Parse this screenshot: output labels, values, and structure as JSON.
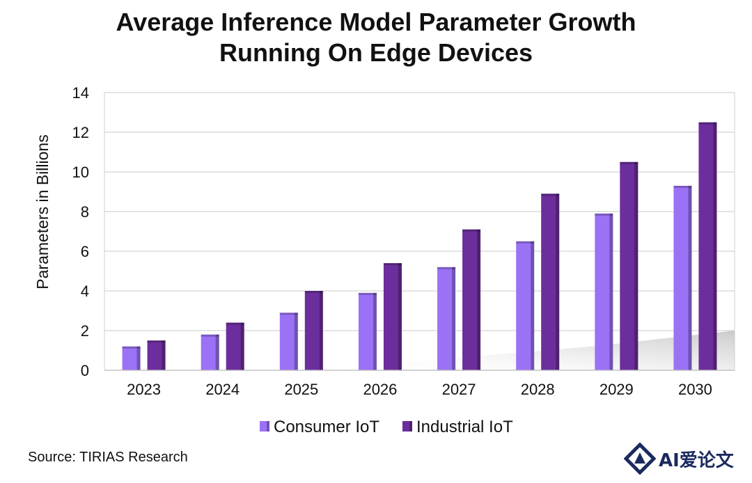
{
  "chart_data": {
    "type": "bar",
    "title_lines": [
      "Average Inference Model Parameter Growth",
      "Running On Edge Devices"
    ],
    "ylabel": "Parameters in Billions",
    "xlabel": "",
    "ylim": [
      0,
      14
    ],
    "yticks": [
      0,
      2,
      4,
      6,
      8,
      10,
      12,
      14
    ],
    "categories": [
      "2023",
      "2024",
      "2025",
      "2026",
      "2027",
      "2028",
      "2029",
      "2030"
    ],
    "series": [
      {
        "name": "Consumer IoT",
        "values": [
          1.2,
          1.8,
          2.9,
          3.9,
          5.2,
          6.5,
          7.9,
          9.3
        ],
        "color": "#9b72f5"
      },
      {
        "name": "Industrial IoT",
        "values": [
          1.5,
          2.4,
          4.0,
          5.4,
          7.1,
          8.9,
          10.5,
          12.5
        ],
        "color": "#6c2e9c"
      }
    ],
    "grid": true,
    "legend_position": "bottom"
  },
  "source": "Source: TIRIAS Research",
  "watermark": {
    "text": "AI爱论文",
    "icon": "logo-icon"
  }
}
